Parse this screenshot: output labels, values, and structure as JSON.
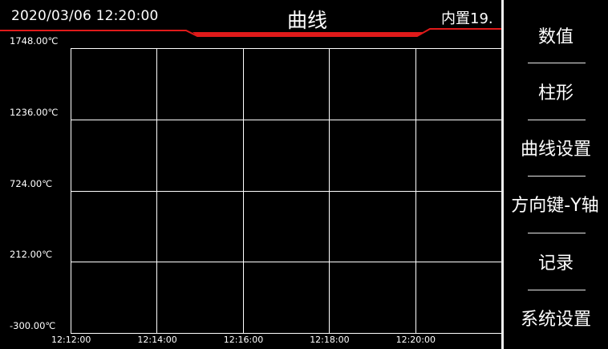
{
  "header": {
    "datetime": "2020/03/06 12:20:00",
    "title": "曲线",
    "sensor_label": "内置19."
  },
  "colors": {
    "background": "#000000",
    "accent_line": "#e01a1a",
    "grid": "#ffffff",
    "text": "#ffffff"
  },
  "chart_data": {
    "type": "line",
    "title": "",
    "xlabel": "",
    "ylabel": "",
    "y_ticks": [
      "1748.00℃",
      "1236.00℃",
      "724.00℃",
      "212.00℃",
      "-300.00℃"
    ],
    "y_values": [
      1748.0,
      1236.0,
      724.0,
      212.0,
      -300.0
    ],
    "ylim": [
      -300.0,
      1748.0
    ],
    "x_ticks": [
      "12:12:00",
      "12:14:00",
      "12:16:00",
      "12:18:00",
      "12:20:00"
    ],
    "xlim": [
      "12:12:00",
      "12:22:00"
    ],
    "grid": true,
    "series": []
  },
  "menu": {
    "items": [
      {
        "label": "数值"
      },
      {
        "label": "柱形"
      },
      {
        "label": "曲线设置"
      },
      {
        "label": "方向键-Y轴"
      },
      {
        "label": "记录"
      },
      {
        "label": "系统设置"
      }
    ]
  }
}
